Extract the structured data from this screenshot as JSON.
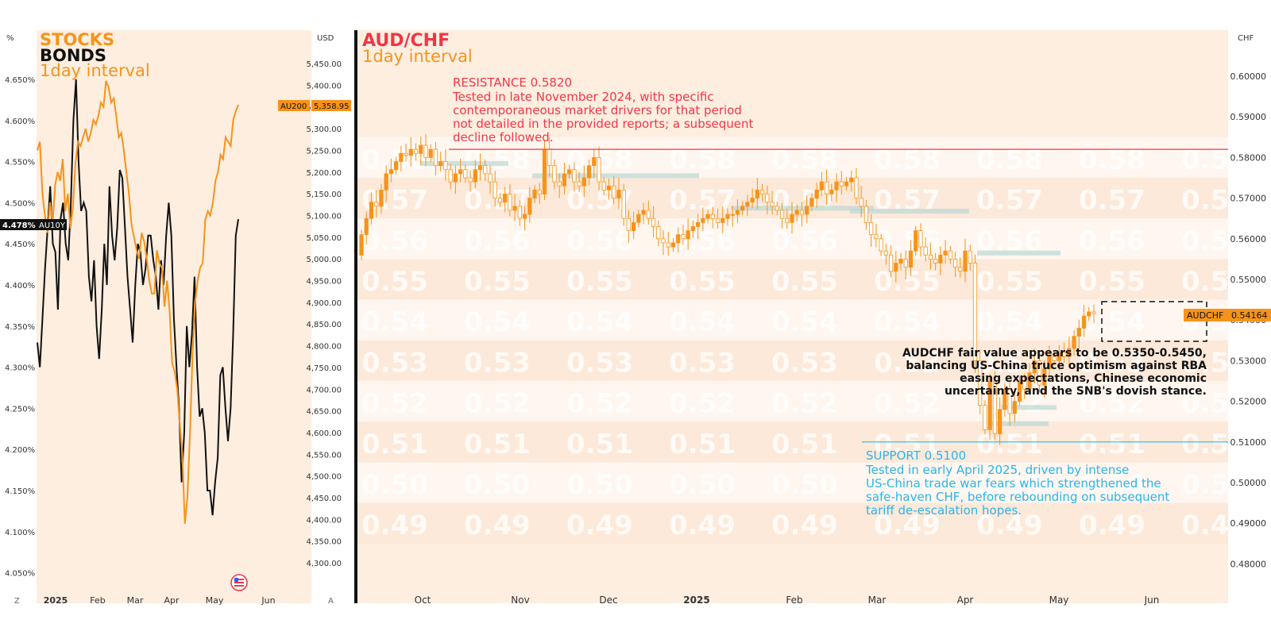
{
  "colors": {
    "orange": "#f7931a",
    "red": "#f23645",
    "blue": "#2ab5ea",
    "black": "#111111",
    "panel_bg": "#fdeee0",
    "band_dark": "#fce4d0",
    "band_light": "#fef3ea",
    "tag_bg": "#f7931a"
  },
  "left_chart": {
    "title_stocks": "STOCKS",
    "title_bonds": "BONDS",
    "interval": "1day interval",
    "left_unit": "%",
    "right_unit": "USD",
    "bonds_tag": {
      "value": "4.478%",
      "ticker": "AU10Y"
    },
    "stocks_tag": {
      "ticker": "AU200",
      "value": "5,358.95"
    },
    "corner_left": "Z",
    "corner_right": "A",
    "flag_icon": "us-flag-icon"
  },
  "right_chart": {
    "title": "AUD/CHF",
    "interval": "1day interval",
    "unit": "CHF",
    "price_tag": {
      "ticker": "AUDCHF",
      "value": "0.54164"
    },
    "resistance_title": "RESISTANCE 0.5820",
    "resistance_text": [
      "Tested in late November 2024, with specific",
      "contemporaneous market drivers for that period",
      "not detailed in the provided reports; a subsequent",
      "decline followed."
    ],
    "support_title": "SUPPORT 0.5100",
    "support_text": [
      "Tested in early April 2025, driven by intense",
      "US-China trade war fears which strengthened the",
      "safe-haven CHF, before rebounding on subsequent",
      "tariff de-escalation hopes."
    ],
    "fair_value_text": [
      "AUDCHF fair value appears to be 0.5350-0.5450,",
      "balancing US-China truce optimism against RBA",
      "easing expectations, Chinese economic",
      "uncertainty, and the SNB's dovish stance."
    ],
    "watermark_labels": [
      "0.58",
      "0.57",
      "0.56",
      "0.55",
      "0.54",
      "0.53",
      "0.52",
      "0.51",
      "0.50",
      "0.49"
    ]
  },
  "chart_data": [
    {
      "type": "line",
      "title": "STOCKS / BONDS 1day interval",
      "x_ticks": [
        "2025",
        "Feb",
        "Mar",
        "Apr",
        "May",
        "Jun"
      ],
      "y_left_label": "%",
      "y_left_ticks": [
        "4.650%",
        "4.600%",
        "4.550%",
        "4.500%",
        "4.450%",
        "4.400%",
        "4.350%",
        "4.300%",
        "4.250%",
        "4.200%",
        "4.150%",
        "4.100%",
        "4.050%"
      ],
      "y_left_range": [
        4.04,
        4.66
      ],
      "y_right_label": "USD",
      "y_right_ticks": [
        "5,450.00",
        "5,400.00",
        "5,350.00",
        "5,300.00",
        "5,250.00",
        "5,200.00",
        "5,150.00",
        "5,100.00",
        "5,050.00",
        "5,000.00",
        "4,950.00",
        "4,900.00",
        "4,850.00",
        "4,800.00",
        "4,750.00",
        "4,700.00",
        "4,650.00",
        "4,600.00",
        "4,550.00",
        "4,500.00",
        "4,450.00",
        "4,400.00",
        "4,350.00",
        "4,300.00"
      ],
      "y_right_range": [
        4270,
        5480
      ],
      "series": [
        {
          "name": "AU10Y",
          "axis": "left",
          "color": "#111111",
          "values": [
            4.33,
            4.3,
            4.36,
            4.42,
            4.47,
            4.52,
            4.45,
            4.44,
            4.37,
            4.48,
            4.5,
            4.45,
            4.43,
            4.5,
            4.6,
            4.65,
            4.55,
            4.49,
            4.5,
            4.49,
            4.41,
            4.38,
            4.43,
            4.35,
            4.31,
            4.37,
            4.45,
            4.4,
            4.52,
            4.46,
            4.43,
            4.47,
            4.54,
            4.53,
            4.47,
            4.41,
            4.37,
            4.33,
            4.4,
            4.45,
            4.44,
            4.4,
            4.42,
            4.46,
            4.46,
            4.43,
            4.41,
            4.37,
            4.43,
            4.4,
            4.46,
            4.5,
            4.46,
            4.36,
            4.3,
            4.25,
            4.16,
            4.22,
            4.35,
            4.3,
            4.34,
            4.41,
            4.3,
            4.24,
            4.25,
            4.22,
            4.15,
            4.15,
            4.12,
            4.16,
            4.19,
            4.29,
            4.3,
            4.25,
            4.21,
            4.25,
            4.34,
            4.46,
            4.48
          ]
        },
        {
          "name": "AU200",
          "axis": "right",
          "color": "#f7931a",
          "values": [
            5250,
            5270,
            5150,
            5100,
            5060,
            5130,
            5080,
            5170,
            5200,
            5180,
            5230,
            5110,
            5150,
            5070,
            5120,
            5220,
            5270,
            5260,
            5280,
            5300,
            5270,
            5290,
            5320,
            5310,
            5330,
            5360,
            5350,
            5410,
            5395,
            5360,
            5370,
            5330,
            5280,
            5290,
            5250,
            5200,
            5150,
            5080,
            5050,
            5020,
            5000,
            5060,
            5040,
            5000,
            4950,
            4920,
            4920,
            5020,
            4990,
            4980,
            4890,
            4950,
            4880,
            4760,
            4740,
            4700,
            4620,
            4550,
            4390,
            4450,
            4600,
            4780,
            4900,
            4950,
            4980,
            4990,
            5090,
            5110,
            5100,
            5130,
            5180,
            5200,
            5240,
            5230,
            5280,
            5270,
            5260,
            5320,
            5340,
            5355
          ]
        }
      ]
    },
    {
      "type": "candlestick",
      "title": "AUD/CHF 1day interval",
      "x_ticks": [
        "Oct",
        "Nov",
        "Dec",
        "2025",
        "Feb",
        "Mar",
        "Apr",
        "May",
        "Jun"
      ],
      "y_ticks": [
        "0.60000",
        "0.59000",
        "0.58000",
        "0.57000",
        "0.56000",
        "0.55000",
        "0.54000",
        "0.53000",
        "0.52000",
        "0.51000",
        "0.50000",
        "0.49000",
        "0.48000"
      ],
      "y_range": [
        0.476,
        0.604
      ],
      "resistance": 0.582,
      "support": 0.51,
      "last_price": 0.54164,
      "closes": [
        0.561,
        0.565,
        0.569,
        0.568,
        0.572,
        0.576,
        0.577,
        0.579,
        0.581,
        0.5805,
        0.582,
        0.581,
        0.583,
        0.58,
        0.582,
        0.578,
        0.579,
        0.577,
        0.574,
        0.576,
        0.577,
        0.575,
        0.574,
        0.577,
        0.578,
        0.576,
        0.574,
        0.57,
        0.569,
        0.571,
        0.567,
        0.568,
        0.565,
        0.566,
        0.57,
        0.572,
        0.571,
        0.582,
        0.578,
        0.574,
        0.573,
        0.576,
        0.577,
        0.574,
        0.573,
        0.575,
        0.578,
        0.58,
        0.574,
        0.572,
        0.573,
        0.57,
        0.572,
        0.565,
        0.562,
        0.564,
        0.566,
        0.567,
        0.565,
        0.563,
        0.56,
        0.559,
        0.558,
        0.559,
        0.561,
        0.56,
        0.562,
        0.563,
        0.564,
        0.565,
        0.566,
        0.565,
        0.564,
        0.565,
        0.566,
        0.566,
        0.567,
        0.568,
        0.569,
        0.57,
        0.572,
        0.571,
        0.569,
        0.568,
        0.567,
        0.565,
        0.564,
        0.566,
        0.567,
        0.566,
        0.568,
        0.57,
        0.572,
        0.574,
        0.571,
        0.572,
        0.574,
        0.573,
        0.574,
        0.575,
        0.57,
        0.568,
        0.564,
        0.561,
        0.56,
        0.557,
        0.556,
        0.552,
        0.554,
        0.555,
        0.553,
        0.557,
        0.562,
        0.558,
        0.556,
        0.555,
        0.554,
        0.556,
        0.557,
        0.555,
        0.553,
        0.552,
        0.557,
        0.554,
        0.53,
        0.519,
        0.513,
        0.525,
        0.512,
        0.518,
        0.523,
        0.517,
        0.52,
        0.525,
        0.523,
        0.527,
        0.53,
        0.524,
        0.528,
        0.531,
        0.53,
        0.532,
        0.531,
        0.533,
        0.536,
        0.538,
        0.541,
        0.542,
        0.5416
      ]
    }
  ]
}
